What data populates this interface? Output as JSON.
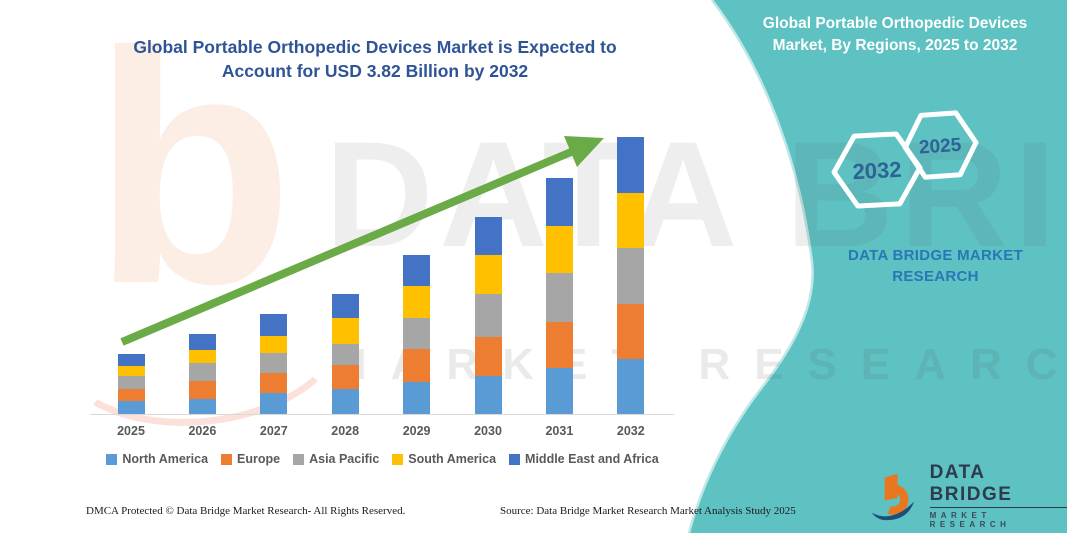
{
  "main_title": {
    "line1": "Global Portable Orthopedic Devices Market is Expected to",
    "line2": "Account for USD 3.82 Billion by 2032"
  },
  "side_panel": {
    "title_line1": "Global Portable Orthopedic Devices",
    "title_line2": "Market, By Regions, 2025 to 2032",
    "hexagon_back_label": "2032",
    "hexagon_front_label": "2025",
    "brand_caption_line1": "DATA BRIDGE MARKET",
    "brand_caption_line2": "RESEARCH"
  },
  "chart_data": {
    "type": "bar",
    "subtype": "stacked-column",
    "title": "Global Portable Orthopedic Devices Market is Expected to Account for USD 3.82 Billion by 2032",
    "unit": "USD Billion",
    "categories": [
      "2025",
      "2026",
      "2027",
      "2028",
      "2029",
      "2030",
      "2031",
      "2032"
    ],
    "series": [
      {
        "name": "North America",
        "color": "#5B9BD5",
        "values": [
          0.18,
          0.21,
          0.29,
          0.34,
          0.44,
          0.53,
          0.63,
          0.76
        ]
      },
      {
        "name": "Europe",
        "color": "#ED7D31",
        "values": [
          0.16,
          0.25,
          0.27,
          0.33,
          0.46,
          0.53,
          0.64,
          0.76
        ]
      },
      {
        "name": "Asia Pacific",
        "color": "#A6A6A6",
        "values": [
          0.18,
          0.24,
          0.28,
          0.3,
          0.42,
          0.6,
          0.67,
          0.77
        ]
      },
      {
        "name": "South America",
        "color": "#FFC000",
        "values": [
          0.14,
          0.19,
          0.24,
          0.35,
          0.44,
          0.54,
          0.66,
          0.76
        ]
      },
      {
        "name": "Middle East and Africa",
        "color": "#4472C4",
        "values": [
          0.17,
          0.21,
          0.3,
          0.33,
          0.44,
          0.52,
          0.66,
          0.77
        ]
      }
    ],
    "totals_estimated": [
      0.83,
      1.1,
      1.38,
      1.65,
      2.2,
      2.72,
      3.26,
      3.82
    ],
    "ylim": [
      0,
      4
    ],
    "gridlines": false,
    "legend_position": "bottom",
    "annotations": [
      "upward green trend arrow across bars"
    ]
  },
  "watermark": {
    "letter": "b",
    "big_text": "DATA BRIDGE",
    "spaced_text": "MARKET RESEARCH"
  },
  "footer": {
    "dmca": "DMCA Protected © Data Bridge Market Research-  All Rights Reserved.",
    "source": "Source: Data Bridge Market Research  Market Analysis Study 2025"
  },
  "logo": {
    "brand": "DATA BRIDGE",
    "tagline": "MARKET RESEARCH"
  },
  "colors": {
    "teal_panel": "#5EC1C2",
    "title_blue": "#2F5496",
    "hexagon_label": "#2D6496",
    "brand_caption": "#2878B8",
    "arrow_green": "#6BAB47",
    "axis_gray": "#D9D9D9",
    "label_gray": "#595959",
    "logo_orange": "#E87722",
    "logo_navy": "#1F4E79"
  }
}
